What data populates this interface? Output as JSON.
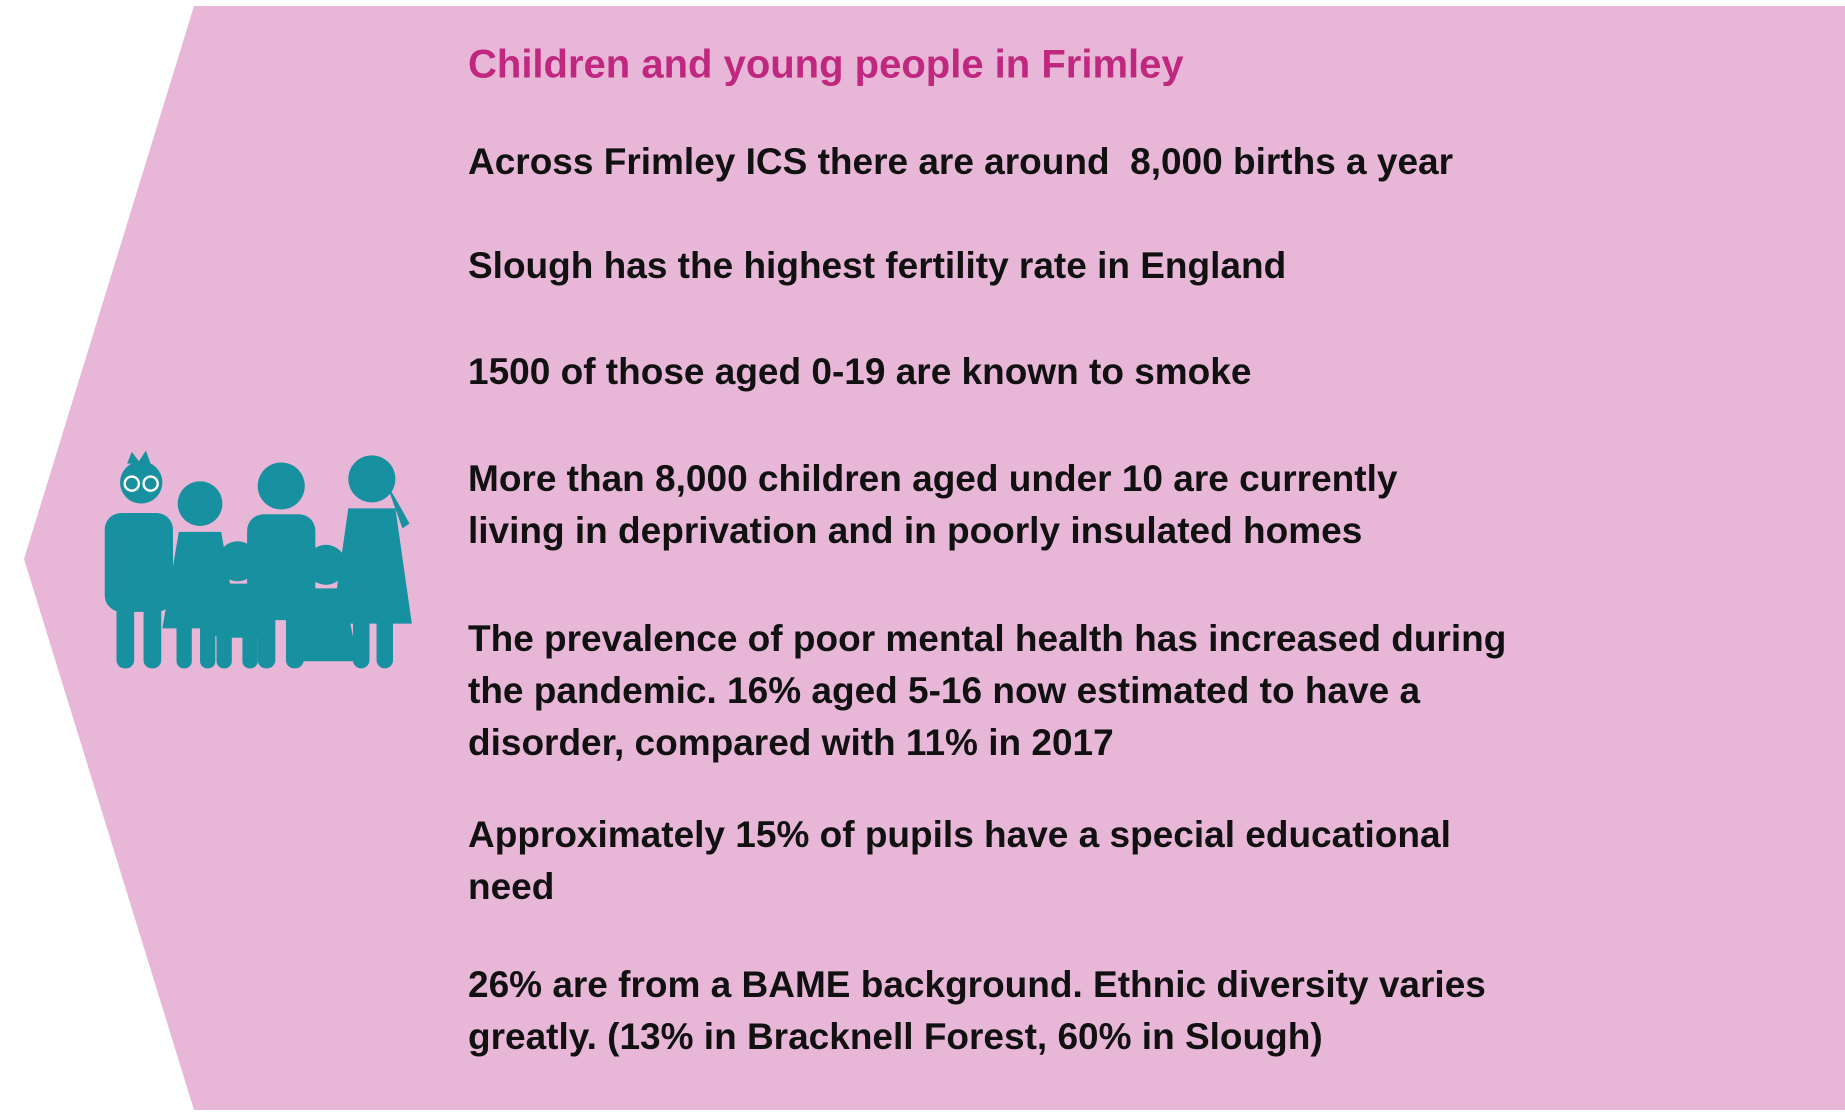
{
  "title": "Children and young people in Frimley",
  "items": [
    [
      "Across Frimley ICS there are around  8,000 births a year"
    ],
    [
      "Slough has the highest fertility rate in England"
    ],
    [
      "1500 of those aged 0-19 are known to smoke"
    ],
    [
      "More than 8,000 children aged under 10 are currently",
      "living in deprivation and in poorly insulated homes"
    ],
    [
      "The prevalence of poor mental health has increased during",
      "the pandemic. 16% aged 5-16 now estimated to have a",
      "disorder, compared with 11% in 2017"
    ],
    [
      "Approximately 15% of pupils have a special educational",
      "need"
    ],
    [
      "26% are from a BAME background. Ethnic diversity varies",
      "greatly. (13% in Bracknell Forest, 60% in Slough)"
    ]
  ]
}
